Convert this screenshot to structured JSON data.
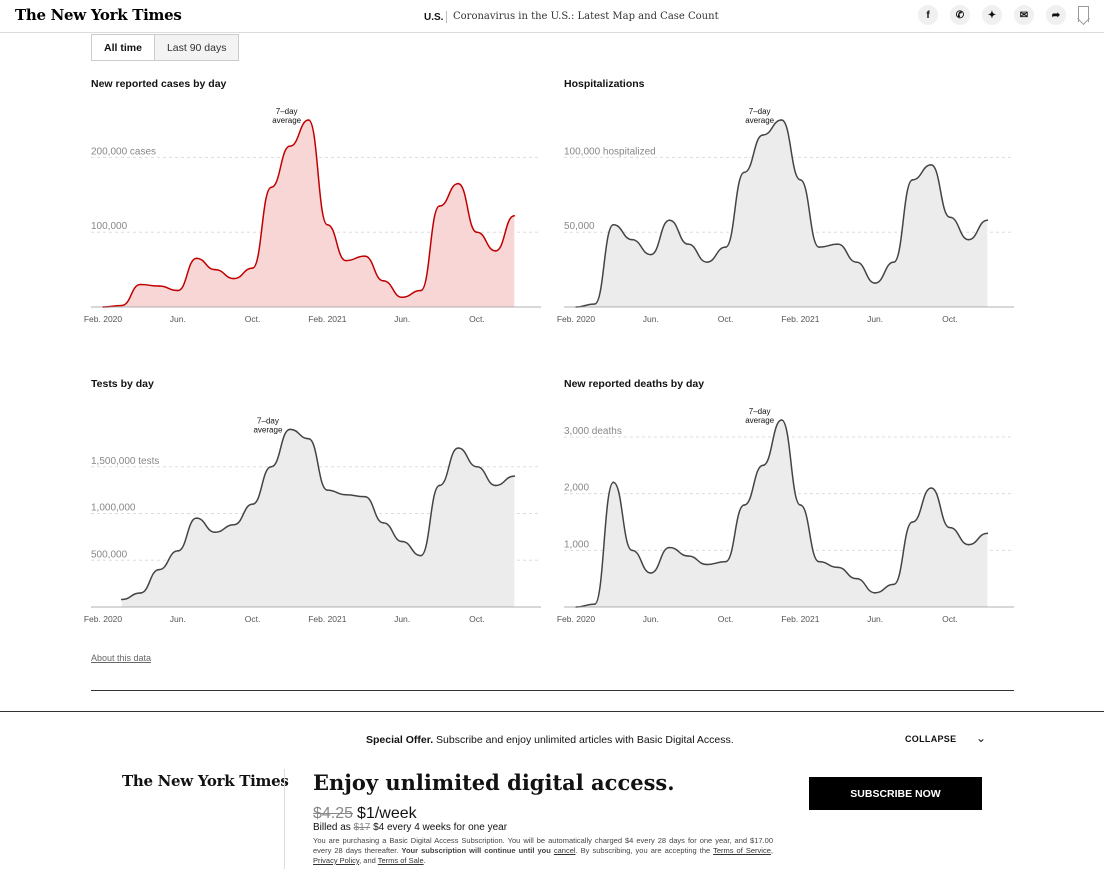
{
  "header": {
    "logo": "The New York Times",
    "section": "U.S.",
    "headline": "Coronavirus in the U.S.: Latest Map and Case Count",
    "share_icons": [
      "facebook-icon",
      "whatsapp-icon",
      "twitter-icon",
      "email-icon",
      "share-icon",
      "bookmark-icon"
    ]
  },
  "toggles": [
    {
      "label": "All time",
      "active": true
    },
    {
      "label": "Last 90 days",
      "active": false
    }
  ],
  "x_ticks": [
    "Feb. 2020",
    "Jun.",
    "Oct.",
    "Feb. 2021",
    "Jun.",
    "Oct."
  ],
  "charts": {
    "cases": {
      "title": "New reported cases by day",
      "y_ticks": [
        "200,000 cases",
        "100,000"
      ],
      "annotation": [
        "7–day",
        "average"
      ],
      "color": "#c00000",
      "fill": "#f8d6d6"
    },
    "hosp": {
      "title": "Hospitalizations",
      "y_ticks": [
        "100,000 hospitalized",
        "50,000"
      ],
      "annotation": [
        "7–day",
        "average"
      ],
      "color": "#444444",
      "fill": "#ececec"
    },
    "tests": {
      "title": "Tests by day",
      "y_ticks": [
        "1,500,000 tests",
        "1,000,000",
        "500,000"
      ],
      "annotation": [
        "7–day",
        "average"
      ],
      "color": "#444444",
      "fill": "#ececec"
    },
    "deaths": {
      "title": "New reported deaths by day",
      "y_ticks": [
        "3,000 deaths",
        "2,000",
        "1,000"
      ],
      "annotation": [
        "7–day",
        "average"
      ],
      "color": "#444444",
      "fill": "#ececec"
    }
  },
  "chart_data": [
    {
      "type": "area",
      "title": "New reported cases by day",
      "x": [
        "2020-02",
        "2020-03",
        "2020-04",
        "2020-05",
        "2020-06",
        "2020-07",
        "2020-08",
        "2020-09",
        "2020-10",
        "2020-11",
        "2020-12",
        "2021-01",
        "2021-02",
        "2021-03",
        "2021-04",
        "2021-05",
        "2021-06",
        "2021-07",
        "2021-08",
        "2021-09",
        "2021-10",
        "2021-11",
        "2021-12"
      ],
      "series": [
        {
          "values": [
            0,
            2000,
            30000,
            28000,
            22000,
            65000,
            50000,
            38000,
            52000,
            160000,
            215000,
            250000,
            110000,
            62000,
            68000,
            35000,
            13000,
            22000,
            135000,
            165000,
            100000,
            75000,
            122000
          ]
        }
      ],
      "ylim": [
        0,
        250000
      ]
    },
    {
      "type": "area",
      "title": "Hospitalizations",
      "x": [
        "2020-02",
        "2020-03",
        "2020-04",
        "2020-05",
        "2020-06",
        "2020-07",
        "2020-08",
        "2020-09",
        "2020-10",
        "2020-11",
        "2020-12",
        "2021-01",
        "2021-02",
        "2021-03",
        "2021-04",
        "2021-05",
        "2021-06",
        "2021-07",
        "2021-08",
        "2021-09",
        "2021-10",
        "2021-11",
        "2021-12"
      ],
      "series": [
        {
          "values": [
            0,
            2000,
            55000,
            45000,
            35000,
            58000,
            42000,
            30000,
            40000,
            90000,
            115000,
            125000,
            85000,
            40000,
            42000,
            30000,
            16000,
            30000,
            85000,
            95000,
            60000,
            45000,
            58000
          ]
        }
      ],
      "ylim": [
        0,
        125000
      ]
    },
    {
      "type": "area",
      "title": "Tests by day",
      "x": [
        "2020-03",
        "2020-04",
        "2020-05",
        "2020-06",
        "2020-07",
        "2020-08",
        "2020-09",
        "2020-10",
        "2020-11",
        "2020-12",
        "2021-01",
        "2021-02",
        "2021-03",
        "2021-04",
        "2021-05",
        "2021-06",
        "2021-07",
        "2021-08",
        "2021-09",
        "2021-10",
        "2021-11",
        "2021-12"
      ],
      "series": [
        {
          "values": [
            80000,
            150000,
            400000,
            600000,
            950000,
            800000,
            880000,
            1100000,
            1500000,
            1900000,
            1800000,
            1250000,
            1200000,
            1180000,
            900000,
            700000,
            550000,
            1300000,
            1700000,
            1500000,
            1300000,
            1400000
          ]
        }
      ],
      "ylim": [
        0,
        2000000
      ]
    },
    {
      "type": "area",
      "title": "New reported deaths by day",
      "x": [
        "2020-02",
        "2020-03",
        "2020-04",
        "2020-05",
        "2020-06",
        "2020-07",
        "2020-08",
        "2020-09",
        "2020-10",
        "2020-11",
        "2020-12",
        "2021-01",
        "2021-02",
        "2021-03",
        "2021-04",
        "2021-05",
        "2021-06",
        "2021-07",
        "2021-08",
        "2021-09",
        "2021-10",
        "2021-11",
        "2021-12"
      ],
      "series": [
        {
          "values": [
            0,
            50,
            2200,
            1000,
            600,
            1050,
            900,
            750,
            800,
            1800,
            2500,
            3300,
            1800,
            800,
            700,
            500,
            250,
            400,
            1500,
            2100,
            1400,
            1100,
            1300
          ]
        }
      ],
      "ylim": [
        0,
        3300
      ]
    }
  ],
  "about_link": "About this data",
  "promo": {
    "offer_bold": "Special Offer.",
    "offer_text": "Subscribe and enjoy unlimited articles with Basic Digital Access.",
    "collapse": "COLLAPSE",
    "logo": "The New York Times",
    "headline": "Enjoy unlimited digital access.",
    "old_price": "$4.25",
    "new_price": "$1/week",
    "billed_prefix": "Billed as",
    "billed_old": "$17",
    "billed_rest": "$4 every 4 weeks for one year",
    "fine_1": "You are purchasing a Basic Digital Access Subscription. You will be automatically charged $4 every 28 days for one year, and $17.00 every 28 days thereafter.",
    "fine_bold": "Your subscription will continue until you",
    "fine_cancel": "cancel",
    "fine_2": ". By subscribing, you are accepting the",
    "fine_tos": "Terms of Service",
    "fine_pp": "Privacy Policy",
    "fine_and": ", and",
    "fine_tos2": "Terms of Sale",
    "subscribe": "SUBSCRIBE NOW"
  }
}
